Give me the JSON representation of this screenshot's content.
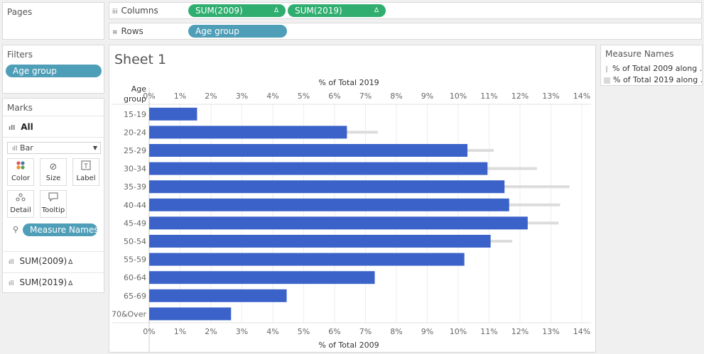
{
  "pages": {
    "title": "Pages"
  },
  "shelves": {
    "columns_label": "Columns",
    "rows_label": "Rows",
    "columns_pills": [
      {
        "label": "SUM(2009)",
        "delta": "Δ"
      },
      {
        "label": "SUM(2019)",
        "delta": "Δ"
      }
    ],
    "rows_pills": [
      {
        "label": "Age group"
      }
    ]
  },
  "filters": {
    "title": "Filters",
    "pill": "Age group"
  },
  "marks": {
    "title": "Marks",
    "all_label": "All",
    "mark_type": "Bar",
    "buttons": [
      {
        "label": "Color",
        "icon": "color-dots-icon"
      },
      {
        "label": "Size",
        "icon": "size-icon"
      },
      {
        "label": "Label",
        "icon": "label-icon"
      },
      {
        "label": "Detail",
        "icon": "detail-icon"
      },
      {
        "label": "Tooltip",
        "icon": "tooltip-icon"
      }
    ],
    "color_pill": "Measure Names",
    "measures": [
      {
        "label": "SUM(2009)",
        "delta": "Δ"
      },
      {
        "label": "SUM(2019)",
        "delta": "Δ"
      }
    ]
  },
  "sheet": {
    "title": "Sheet 1"
  },
  "legend": {
    "title": "Measure Names",
    "items": [
      {
        "label": "% of Total 2009 along ..",
        "color": "#c8c8c8"
      },
      {
        "label": "% of Total 2019 along ..",
        "color": "#d9d9d9"
      }
    ]
  },
  "chart_data": {
    "type": "bar",
    "orientation": "horizontal",
    "row_header": "Age group",
    "top_axis_title": "% of Total 2019",
    "bottom_axis_title": "% of Total 2009",
    "ticks": [
      "0%",
      "1%",
      "2%",
      "3%",
      "4%",
      "5%",
      "6%",
      "7%",
      "8%",
      "9%",
      "10%",
      "11%",
      "12%",
      "13%",
      "14%"
    ],
    "xlim": [
      0,
      14.3
    ],
    "categories": [
      "15-19",
      "20-24",
      "25-29",
      "30-34",
      "35-39",
      "40-44",
      "45-49",
      "50-54",
      "55-59",
      "60-64",
      "65-69",
      "70&Over"
    ],
    "series": [
      {
        "name": "% of Total 2009 along ..",
        "color": "#3a62c9",
        "values": [
          1.55,
          6.4,
          10.3,
          10.95,
          11.5,
          11.65,
          12.25,
          11.05,
          10.2,
          7.3,
          4.45,
          2.65
        ]
      },
      {
        "name": "% of Total 2019 along ..",
        "color": "#dcdcdc",
        "values": [
          1.2,
          7.4,
          11.15,
          12.55,
          13.6,
          13.3,
          13.25,
          11.75,
          9.3,
          6.1,
          3.9,
          2.3
        ]
      }
    ],
    "grid": true
  }
}
